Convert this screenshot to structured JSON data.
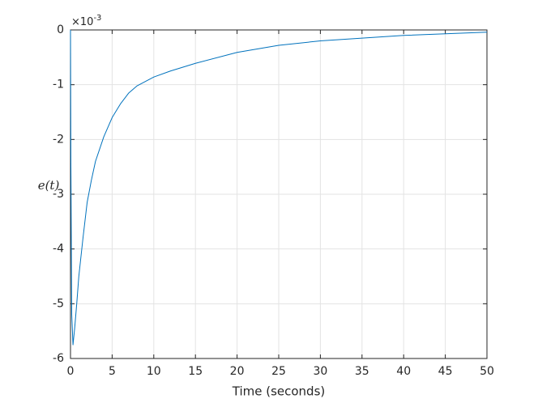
{
  "chart_data": {
    "type": "line",
    "xlabel": "Time (seconds)",
    "ylabel": "e(t)",
    "y_exponent_base": "×10",
    "y_exponent_power": "-3",
    "x": [
      0,
      0.05,
      0.15,
      0.3,
      0.5,
      0.75,
      1,
      1.5,
      2,
      2.5,
      3,
      4,
      5,
      6,
      7,
      8,
      10,
      12,
      15,
      20,
      25,
      30,
      35,
      40,
      45,
      50
    ],
    "series": [
      {
        "color": "#0072bd",
        "values": [
          0,
          -2.5,
          -5.2,
          -5.75,
          -5.45,
          -5.0,
          -4.5,
          -3.8,
          -3.15,
          -2.75,
          -2.4,
          -1.95,
          -1.6,
          -1.35,
          -1.15,
          -1.02,
          -0.86,
          -0.75,
          -0.61,
          -0.41,
          -0.28,
          -0.2,
          -0.15,
          -0.1,
          -0.07,
          -0.04
        ]
      }
    ],
    "xlim": [
      0,
      50
    ],
    "xticks": [
      0,
      5,
      10,
      15,
      20,
      25,
      30,
      35,
      40,
      45,
      50
    ],
    "ylim": [
      -6,
      0
    ],
    "yticks": [
      -6,
      -5,
      -4,
      -3,
      -2,
      -1,
      0
    ],
    "grid": true
  }
}
